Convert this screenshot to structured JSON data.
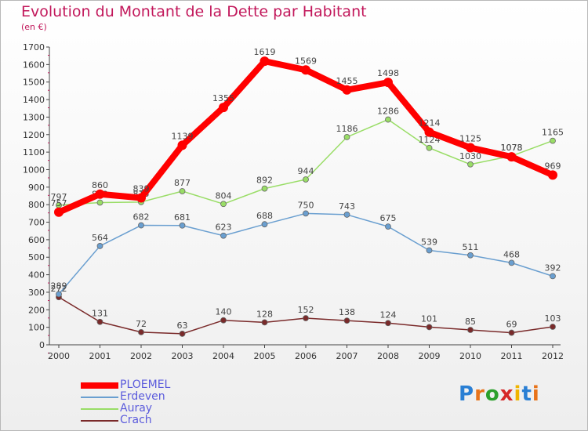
{
  "title": "Evolution du Montant de la Dette par Habitant",
  "unit_label": "(en €)",
  "logo_text": "Proxiti",
  "logo_colors": [
    "#2a7fd4",
    "#e8731a",
    "#2ca02c",
    "#d62728",
    "#f0b400",
    "#2a7fd4",
    "#e8731a"
  ],
  "chart_data": {
    "type": "line",
    "x": [
      "2000",
      "2001",
      "2002",
      "2003",
      "2004",
      "2005",
      "2006",
      "2007",
      "2008",
      "2009",
      "2010",
      "2011",
      "2012"
    ],
    "ylim": [
      0,
      1700
    ],
    "yticks": [
      0,
      100,
      200,
      300,
      400,
      500,
      600,
      700,
      800,
      900,
      1000,
      1100,
      1200,
      1300,
      1400,
      1500,
      1600,
      1700
    ],
    "grid": false,
    "legend_position": "bottom-left",
    "series": [
      {
        "name": "PLOEMEL",
        "color": "#ff0000",
        "values": [
          757,
          860,
          839,
          1139,
          1355,
          1619,
          1569,
          1455,
          1498,
          1214,
          1125,
          1073,
          969
        ]
      },
      {
        "name": "Erdeven",
        "color": "#6a9fd0",
        "values": [
          289,
          564,
          682,
          681,
          623,
          688,
          750,
          743,
          675,
          539,
          511,
          468,
          392
        ]
      },
      {
        "name": "Auray",
        "color": "#99dd66",
        "values": [
          797,
          812,
          815,
          877,
          804,
          892,
          944,
          1186,
          1286,
          1124,
          1030,
          1078,
          1165
        ]
      },
      {
        "name": "Crach",
        "color": "#7a2a2a",
        "values": [
          272,
          131,
          72,
          63,
          140,
          128,
          152,
          138,
          124,
          101,
          85,
          69,
          103
        ]
      }
    ]
  }
}
